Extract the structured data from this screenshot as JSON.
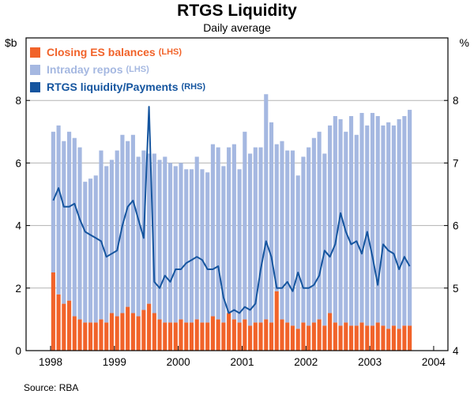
{
  "title": "RTGS Liquidity",
  "subtitle": "Daily average",
  "source": "Source: RBA",
  "axes": {
    "left_unit": "$b",
    "right_unit": "%",
    "left_ticks": [
      0,
      2,
      4,
      6,
      8
    ],
    "right_ticks": [
      4,
      5,
      6,
      7,
      8
    ],
    "left_range": [
      0,
      10
    ],
    "right_range": [
      4,
      9
    ],
    "x_years": [
      1998,
      1999,
      2000,
      2001,
      2002,
      2003,
      2004
    ],
    "grid_color": "#b3b3b3",
    "frame_color": "#000000"
  },
  "legend": [
    {
      "label": "Closing ES balances",
      "suffix": "(LHS)",
      "color": "#f1632a"
    },
    {
      "label": "Intraday repos",
      "suffix": "(LHS)",
      "color": "#a5b8e1"
    },
    {
      "label": "RTGS liquidity/Payments",
      "suffix": "(RHS)",
      "color": "#15559f"
    }
  ],
  "chart_data": {
    "type": "stacked-bar+line",
    "x_start_year": 1998,
    "x_frequency": "monthly",
    "months": 68,
    "xlabel": "",
    "ylabel_left": "$b",
    "ylabel_right": "%",
    "ylim_left": [
      0,
      10
    ],
    "ylim_right": [
      4,
      9
    ],
    "grid": true,
    "legend_position": "top-left",
    "series": [
      {
        "name": "Closing ES balances",
        "axis": "left",
        "type": "bar",
        "values": [
          2.5,
          1.8,
          1.5,
          1.6,
          1.1,
          1.0,
          0.9,
          0.9,
          0.9,
          1.0,
          0.9,
          1.2,
          1.1,
          1.2,
          1.4,
          1.2,
          1.1,
          1.3,
          1.5,
          1.2,
          1.0,
          0.9,
          0.9,
          0.9,
          1.0,
          0.9,
          0.9,
          1.0,
          0.9,
          0.9,
          1.1,
          1.0,
          0.9,
          1.2,
          1.0,
          0.9,
          1.0,
          0.8,
          0.9,
          0.9,
          1.0,
          0.9,
          1.9,
          1.0,
          0.9,
          0.8,
          0.7,
          0.9,
          0.8,
          0.9,
          1.0,
          0.8,
          1.2,
          0.9,
          0.8,
          0.9,
          0.8,
          0.8,
          0.9,
          0.8,
          0.8,
          0.9,
          0.8,
          0.7,
          0.8,
          0.7,
          0.8,
          0.8
        ]
      },
      {
        "name": "Intraday repos",
        "axis": "left",
        "type": "bar",
        "values": [
          4.5,
          5.4,
          5.2,
          5.4,
          5.7,
          5.5,
          4.5,
          4.6,
          4.7,
          5.4,
          5.0,
          4.9,
          5.3,
          5.7,
          5.3,
          5.7,
          5.1,
          5.1,
          4.8,
          5.1,
          5.1,
          5.3,
          5.1,
          5.0,
          5.0,
          4.9,
          4.9,
          5.2,
          4.9,
          4.8,
          5.5,
          5.5,
          5.0,
          5.3,
          5.6,
          4.9,
          6.0,
          5.5,
          5.6,
          5.6,
          7.2,
          6.4,
          4.7,
          5.7,
          5.5,
          5.6,
          4.9,
          5.3,
          5.7,
          5.9,
          6.0,
          5.5,
          6.0,
          6.6,
          6.6,
          6.1,
          6.7,
          6.1,
          6.7,
          6.4,
          6.8,
          6.6,
          6.4,
          6.6,
          6.4,
          6.7,
          6.7,
          6.9
        ]
      },
      {
        "name": "RTGS liquidity/Payments",
        "axis": "right",
        "type": "line",
        "values": [
          6.4,
          6.6,
          6.3,
          6.3,
          6.35,
          6.1,
          5.9,
          5.85,
          5.8,
          5.75,
          5.5,
          5.55,
          5.6,
          6.0,
          6.3,
          6.4,
          6.1,
          5.8,
          7.9,
          5.1,
          5.0,
          5.2,
          5.1,
          5.3,
          5.3,
          5.4,
          5.45,
          5.5,
          5.45,
          5.3,
          5.3,
          5.35,
          4.85,
          4.6,
          4.65,
          4.6,
          4.7,
          4.65,
          4.75,
          5.3,
          5.75,
          5.5,
          5.0,
          5.0,
          5.1,
          4.95,
          5.25,
          5.0,
          5.0,
          5.05,
          5.2,
          5.6,
          5.5,
          5.7,
          6.2,
          5.9,
          5.7,
          5.75,
          5.55,
          5.9,
          5.5,
          5.05,
          5.7,
          5.6,
          5.55,
          5.3,
          5.5,
          5.35
        ]
      }
    ]
  }
}
